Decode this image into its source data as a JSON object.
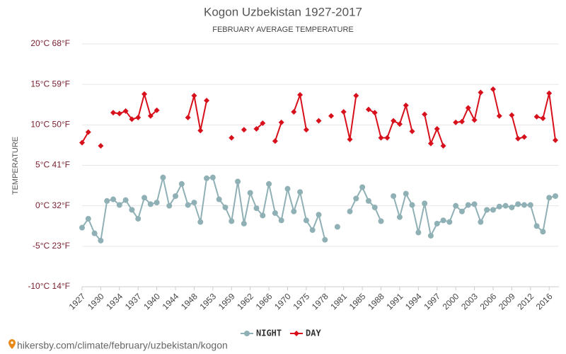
{
  "chart_data": {
    "type": "line",
    "title": "Kogon Uzbekistan 1927-2017",
    "subtitle": "FEBRUARY AVERAGE TEMPERATURE",
    "y_label": "TEMPERATURE",
    "source": "hikersby.com/climate/february/uzbekistan/kogon",
    "legend": "bottom",
    "grid": true,
    "categories": [
      "1927",
      null,
      null,
      "1930",
      null,
      null,
      "1934",
      null,
      null,
      "1937",
      null,
      null,
      "1940",
      null,
      null,
      "1944",
      null,
      null,
      "1948",
      null,
      null,
      "1953",
      null,
      null,
      "1959",
      null,
      null,
      "1962",
      null,
      null,
      "1966",
      null,
      null,
      "1970",
      null,
      null,
      "1975",
      null,
      null,
      "1978",
      null,
      null,
      "1981",
      null,
      null,
      "1985",
      null,
      null,
      "1988",
      null,
      null,
      "1991",
      null,
      null,
      "1994",
      null,
      null,
      "1997",
      null,
      null,
      "2000",
      null,
      null,
      "2003",
      null,
      null,
      "2006",
      null,
      null,
      "2009",
      null,
      null,
      "2012",
      null,
      null,
      "2016",
      null
    ],
    "ylim": [
      -10,
      20
    ],
    "yticks": [
      {
        "value": -10,
        "label": "-10°C 14°F"
      },
      {
        "value": -5,
        "label": "-5°C 23°F"
      },
      {
        "value": 0,
        "label": "0°C 32°F"
      },
      {
        "value": 5,
        "label": "5°C 41°F"
      },
      {
        "value": 10,
        "label": "10°C 50°F"
      },
      {
        "value": 15,
        "label": "15°C 59°F"
      },
      {
        "value": 20,
        "label": "20°C 68°F"
      }
    ],
    "series": [
      {
        "name": "NIGHT",
        "color": "#8fb0b5",
        "marker": "circle",
        "values": [
          -2.7,
          -1.6,
          -3.4,
          -4.3,
          0.6,
          0.8,
          0.1,
          0.7,
          -0.5,
          -1.6,
          1.0,
          0.2,
          0.4,
          3.5,
          0.0,
          1.2,
          2.7,
          0.1,
          0.4,
          -2.0,
          3.4,
          3.5,
          0.8,
          -0.2,
          -1.9,
          3.0,
          -2.2,
          1.6,
          -0.3,
          -1.2,
          2.7,
          -0.9,
          -1.8,
          2.1,
          -0.7,
          1.7,
          -1.8,
          -3.0,
          -1.1,
          -4.2,
          null,
          -2.6,
          null,
          -0.7,
          0.9,
          2.3,
          0.6,
          -0.2,
          -1.9,
          null,
          1.2,
          -1.4,
          1.5,
          0.1,
          -3.3,
          0.3,
          -3.7,
          -2.2,
          -1.8,
          -2.0,
          0.0,
          -0.7,
          0.1,
          0.2,
          -2.0,
          -0.5,
          -0.5,
          -0.1,
          0.0,
          -0.2,
          0.2,
          0.1,
          0.1,
          -2.5,
          -3.2,
          1.0,
          1.2
        ]
      },
      {
        "name": "DAY",
        "color": "#d7101b",
        "marker": "diamond",
        "values": [
          7.8,
          9.1,
          null,
          7.4,
          null,
          11.5,
          11.4,
          11.7,
          10.7,
          10.9,
          13.8,
          11.1,
          11.8,
          null,
          null,
          null,
          null,
          10.9,
          13.6,
          9.3,
          13.0,
          null,
          null,
          null,
          8.4,
          null,
          9.4,
          null,
          9.5,
          10.2,
          null,
          8.0,
          10.3,
          null,
          11.6,
          13.7,
          9.4,
          null,
          10.5,
          null,
          11.1,
          null,
          11.6,
          8.2,
          13.6,
          null,
          11.9,
          11.5,
          8.4,
          8.4,
          10.5,
          10.1,
          12.4,
          9.2,
          null,
          11.3,
          7.7,
          9.5,
          7.4,
          null,
          10.3,
          10.4,
          12.1,
          10.6,
          14.0,
          null,
          14.4,
          11.1,
          null,
          11.2,
          8.3,
          8.5,
          null,
          11.0,
          10.8,
          13.9,
          8.1
        ]
      }
    ]
  }
}
